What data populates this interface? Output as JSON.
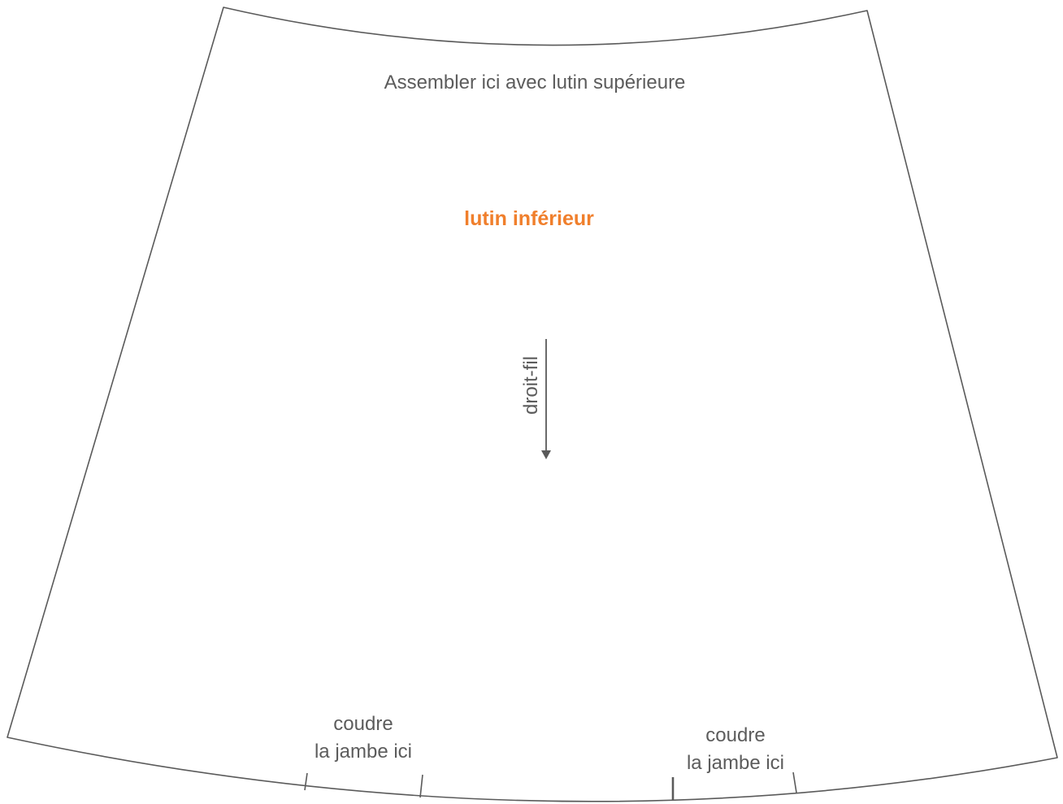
{
  "pattern_piece": {
    "name": "lutin inférieur",
    "name_color": "#f07f2c",
    "outline_color": "#5a5a5a",
    "top_edge_label": "Assembler ici avec lutin supérieure",
    "grainline_label": "droit-fil",
    "sew_markers": [
      {
        "line1": "coudre",
        "line2": "la jambe ici"
      },
      {
        "line1": "coudre",
        "line2": "la jambe ici"
      }
    ]
  }
}
